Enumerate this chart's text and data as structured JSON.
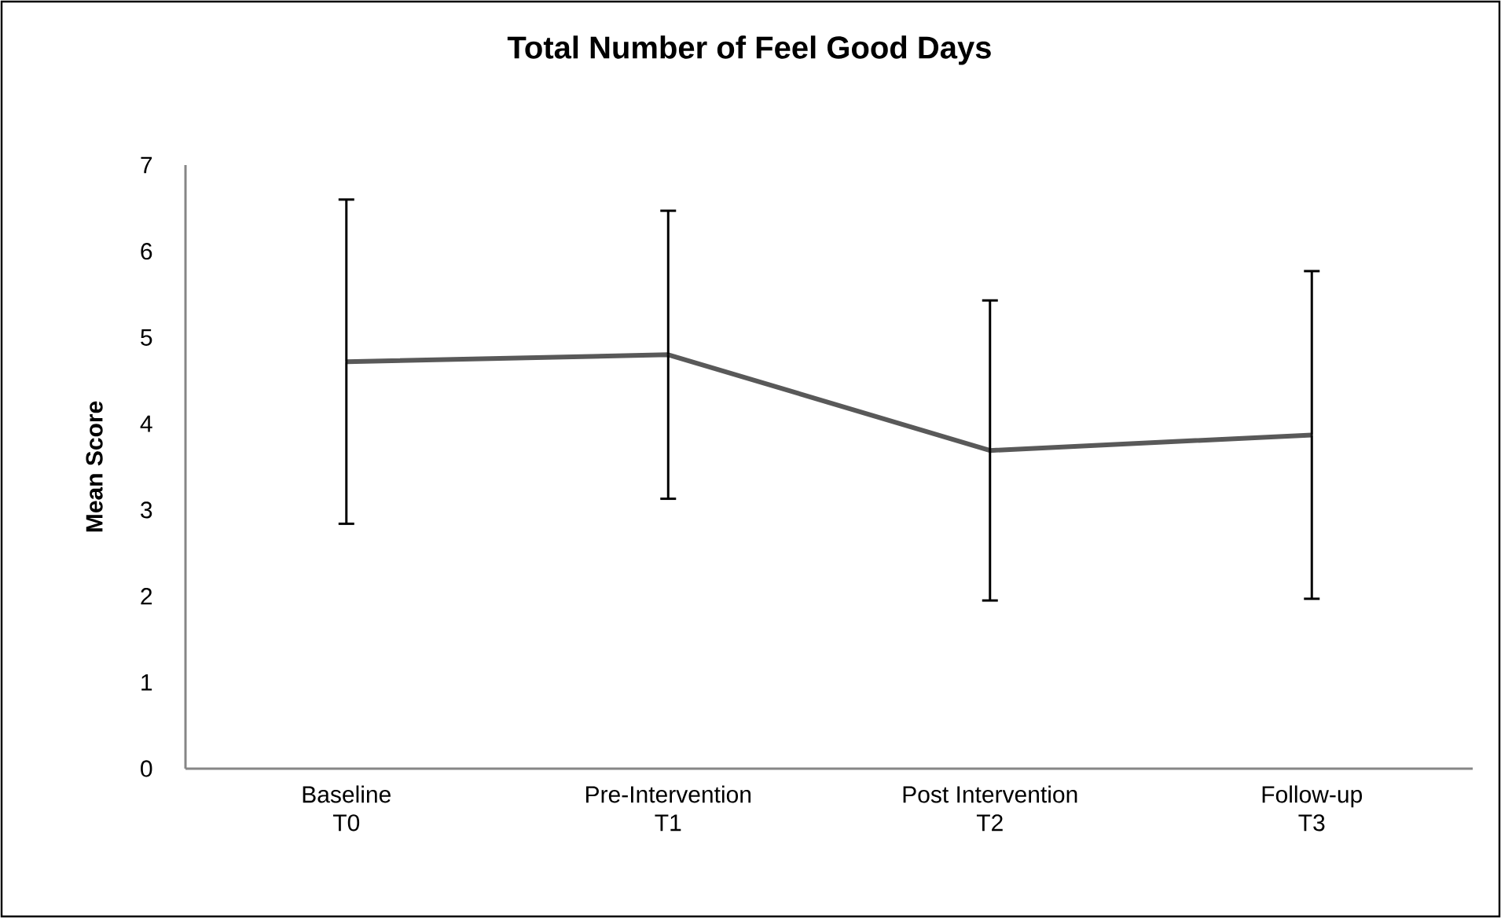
{
  "chart_data": {
    "type": "line",
    "title": "Total Number of Feel Good Days",
    "ylabel": "Mean Score",
    "categories": [
      "Baseline T0",
      "Pre-Intervention T1",
      "Post Intervention T2",
      "Follow-up T3"
    ],
    "series": [
      {
        "color": "#595959",
        "values": [
          4.72,
          4.8,
          3.69,
          3.87
        ],
        "errors": [
          1.88,
          1.67,
          1.74,
          1.9
        ]
      }
    ],
    "ylim": [
      0,
      7
    ],
    "yticks": [
      0,
      1,
      2,
      3,
      4,
      5,
      6,
      7
    ]
  }
}
